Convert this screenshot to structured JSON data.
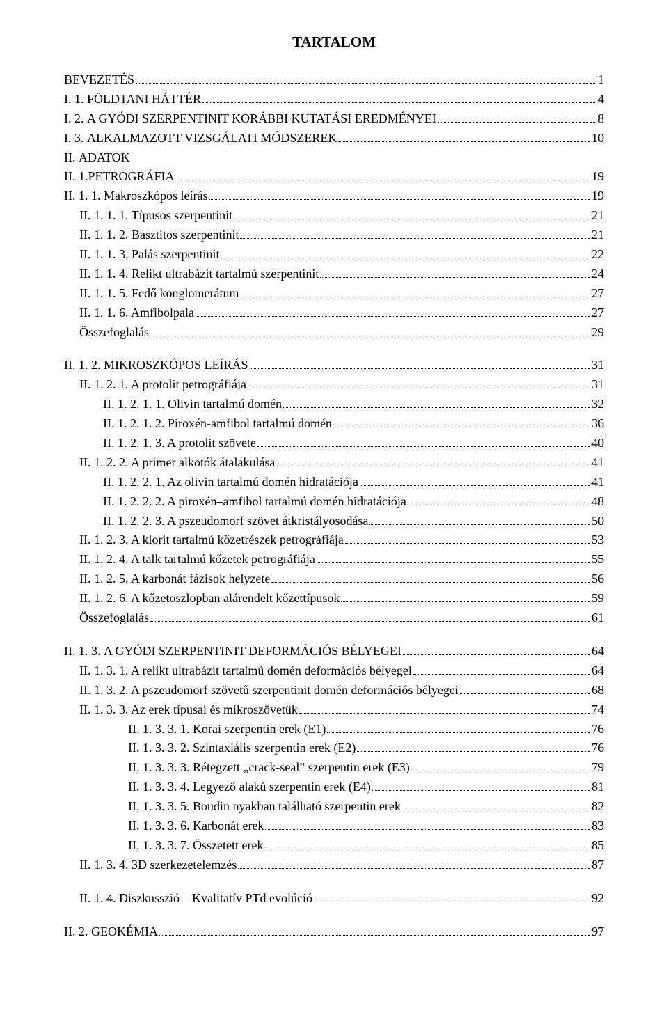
{
  "title": "TARTALOM",
  "entries": [
    {
      "indent": 0,
      "label_sc": "BEVEZETÉS",
      "label": "",
      "page": "1"
    },
    {
      "indent": 0,
      "label": "I. 1. ",
      "label_sc": "FÖLDTANI HÁTTÉR",
      "label2": "",
      "page": "4"
    },
    {
      "indent": 0,
      "label": "I. 2. ",
      "label_sc": "A GYÓDI SZERPENTINIT KORÁBBI KUTATÁSI EREDMÉNYEI",
      "label2": "",
      "page": "8"
    },
    {
      "indent": 0,
      "label": "I. 3. ",
      "label_sc": "ALKALMAZOTT VIZSGÁLATI MÓDSZEREK",
      "label2": "",
      "page": "10"
    },
    {
      "indent": 0,
      "label": "II. ",
      "label_sc": "ADATOK",
      "label2": "",
      "page": "",
      "nodots": true
    },
    {
      "indent": 0,
      "label": "II. 1.",
      "label_sc": "PETROGRÁFIA",
      "label2": "",
      "page": "19"
    },
    {
      "indent": 0,
      "label": "II. 1. 1. Makroszkópos leírás",
      "page": "19"
    },
    {
      "indent": 1,
      "label": "II. 1. 1. 1. Típusos szerpentinit",
      "page": "21"
    },
    {
      "indent": 1,
      "label": "II. 1. 1. 2. Basztitos szerpentinit",
      "page": "21"
    },
    {
      "indent": 1,
      "label": "II. 1. 1. 3. Palás szerpentinit",
      "page": "22"
    },
    {
      "indent": 1,
      "label": "II. 1. 1. 4. Relikt ultrabázit tartalmú szerpentinit",
      "page": "24"
    },
    {
      "indent": 1,
      "label": "II. 1. 1. 5. Fedő konglomerátum",
      "page": "27"
    },
    {
      "indent": 1,
      "label": "II. 1. 1. 6. Amfibolpala",
      "page": "27"
    },
    {
      "indent": 1,
      "label": "Összefoglalás",
      "page": " 29"
    },
    {
      "gap": true
    },
    {
      "indent": 0,
      "label": "II. 1. 2. ",
      "label_sc": "MIKROSZKÓPOS LEÍRÁS",
      "label2": "",
      "page": "31"
    },
    {
      "indent": 1,
      "label": "II. 1. 2. 1. A protolit petrográfiája",
      "page": "31"
    },
    {
      "indent": 2,
      "label": "II. 1. 2. 1. 1. Olivin tartalmú domén",
      "page": "32"
    },
    {
      "indent": 2,
      "label": "II. 1. 2. 1. 2. Piroxén-amfibol tartalmú domén",
      "page": "36"
    },
    {
      "indent": 2,
      "label": "II. 1. 2. 1. 3. A protolit szövete",
      "page": " 40"
    },
    {
      "indent": 1,
      "label": "II. 1. 2. 2. A primer alkotók átalakulása",
      "page": "41"
    },
    {
      "indent": 2,
      "label": "II. 1. 2. 2. 1. Az olivin tartalmú domén hidratációja",
      "page": "41"
    },
    {
      "indent": 2,
      "label": "II. 1. 2. 2. 2. A piroxén–amfibol tartalmú domén hidratációja",
      "page": " 48"
    },
    {
      "indent": 2,
      "label": "II. 1. 2. 2. 3. A pszeudomorf szövet átkristályosodása",
      "page": " 50"
    },
    {
      "indent": 1,
      "label": "II. 1. 2. 3. A klorit tartalmú kőzetrészek petrográfiája",
      "page": "53"
    },
    {
      "indent": 1,
      "label": "II. 1. 2. 4. A talk tartalmú kőzetek petrográfiája",
      "page": "55"
    },
    {
      "indent": 1,
      "label": "II. 1. 2. 5. A karbonát fázisok helyzete",
      "page": "56"
    },
    {
      "indent": 1,
      "label": "II. 1. 2. 6. A kőzetoszlopban alárendelt kőzettípusok",
      "page": "59"
    },
    {
      "indent": 1,
      "label": "Összefoglalás",
      "page": " 61"
    },
    {
      "gap": true
    },
    {
      "indent": 0,
      "label": "II. 1. 3. ",
      "label_sc": "A GYÓDI SZERPENTINIT DEFORMÁCIÓS BÉLYEGEI",
      "label2": "",
      "page": "64"
    },
    {
      "indent": 1,
      "label": "II. 1. 3. 1. A relikt ultrabázit tartalmú domén deformációs bélyegei",
      "page": "64"
    },
    {
      "indent": 1,
      "label": "II. 1. 3. 2. A pszeudomorf szövetű szerpentinit domén deformációs bélyegei",
      "page": "68"
    },
    {
      "indent": 1,
      "label": "II. 1. 3. 3. Az erek típusai és mikroszövetük",
      "page": "74"
    },
    {
      "indent": 3,
      "label": "II. 1. 3. 3. 1. Korai szerpentin erek (E1)",
      "page": " 76"
    },
    {
      "indent": 3,
      "label": "II. 1. 3. 3. 2. Szintaxiális szerpentin erek (E2)",
      "page": "76"
    },
    {
      "indent": 3,
      "label": "II. 1. 3. 3. 3. Rétegzett „crack-seal” szerpentin erek (E3)",
      "page": " 79"
    },
    {
      "indent": 3,
      "label": "II. 1. 3. 3. 4. Legyező alakú szerpentin erek (E4)",
      "page": "81"
    },
    {
      "indent": 3,
      "label": "II. 1. 3. 3. 5. Boudin nyakban található szerpentin erek",
      "page": "82"
    },
    {
      "indent": 3,
      "label": "II. 1. 3. 3. 6. Karbonát erek",
      "page": "83"
    },
    {
      "indent": 3,
      "label": "II. 1. 3. 3. 7. Összetett erek",
      "page": "85"
    },
    {
      "indent": 1,
      "label": "II. 1. 3. 4. 3D szerkezetelemzés",
      "page": "87"
    },
    {
      "gap": true
    },
    {
      "indent": 1,
      "label": "II. 1. 4. Diszkusszió – Kvalitatív PTd evolúció",
      "page": "92"
    },
    {
      "gap": true
    },
    {
      "indent": 0,
      "label": "II. 2. ",
      "label_sc": "GEOKÉMIA",
      "label2": "",
      "page": "97"
    }
  ]
}
